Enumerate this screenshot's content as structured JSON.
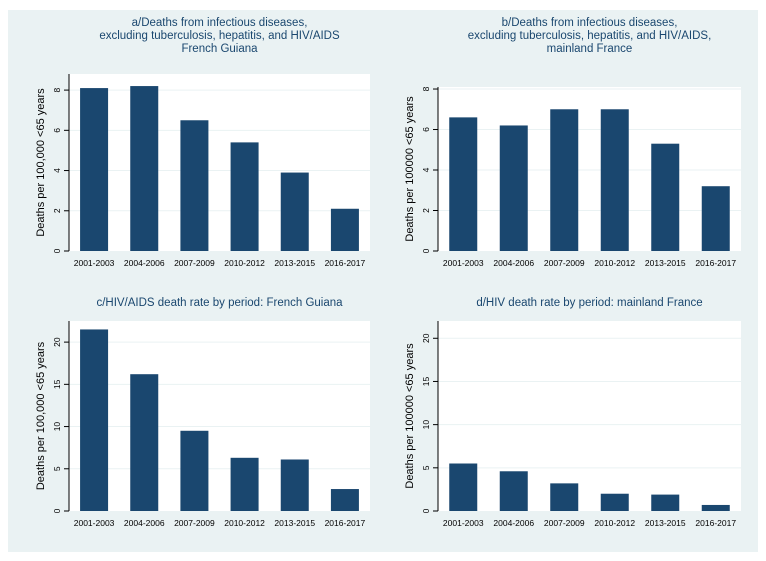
{
  "chart_data": [
    {
      "type": "bar",
      "title_lines": [
        "a/Deaths from infectious diseases,",
        "excluding tuberculosis, hepatitis, and HIV/AIDS",
        "French Guiana"
      ],
      "ylabel": "Deaths per 100,000 <65 years",
      "categories": [
        "2001-2003",
        "2004-2006",
        "2007-2009",
        "2010-2012",
        "2013-2015",
        "2016-2017"
      ],
      "values": [
        8.1,
        8.2,
        6.5,
        5.4,
        3.9,
        2.1
      ],
      "yticks": [
        "0",
        "2",
        "4",
        "6",
        "8"
      ],
      "ylim": [
        0,
        8.8
      ]
    },
    {
      "type": "bar",
      "title_lines": [
        "b/Deaths from infectious diseases,",
        "excluding tuberculosis, hepatitis, and HIV/AIDS,",
        "mainland France"
      ],
      "ylabel": "Deaths per 100000 <65 years",
      "categories": [
        "2001-2003",
        "2004-2006",
        "2007-2009",
        "2010-2012",
        "2013-2015",
        "2016-2017"
      ],
      "values": [
        6.6,
        6.2,
        7.0,
        7.0,
        5.3,
        3.2
      ],
      "yticks": [
        "0",
        "2",
        "4",
        "6",
        "8"
      ],
      "ylim": [
        0,
        8.1
      ]
    },
    {
      "type": "bar",
      "title_lines": [
        "c/HIV/AIDS death rate by period: French Guiana"
      ],
      "ylabel": "Deaths per 100,000 <65 years",
      "categories": [
        "2001-2003",
        "2004-2006",
        "2007-2009",
        "2010-2012",
        "2013-2015",
        "2016-2017"
      ],
      "values": [
        21.5,
        16.2,
        9.5,
        6.3,
        6.1,
        2.6
      ],
      "yticks": [
        "0",
        "5",
        "10",
        "15",
        "20"
      ],
      "ylim": [
        0,
        22.5
      ]
    },
    {
      "type": "bar",
      "title_lines": [
        "d/HIV death rate by period: mainland France"
      ],
      "ylabel": "Deaths per 100000 <65 years",
      "categories": [
        "2001-2003",
        "2004-2006",
        "2007-2009",
        "2010-2012",
        "2013-2015",
        "2016-2017"
      ],
      "values": [
        5.5,
        4.6,
        3.2,
        2.0,
        1.9,
        0.7
      ],
      "yticks": [
        "0",
        "5",
        "10",
        "15",
        "20"
      ],
      "ylim": [
        0,
        22.0
      ]
    }
  ],
  "colors": {
    "bar": "#1a476f",
    "background": "#eaf2f3",
    "plot": "#ffffff",
    "title": "#1a476f"
  }
}
